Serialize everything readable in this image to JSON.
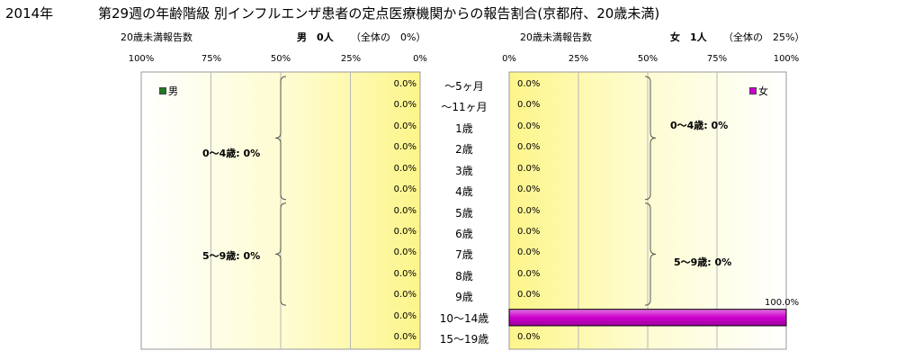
{
  "title": {
    "year": "2014年",
    "main": "第29週の年齢階級 別インフルエンザ患者の定点医療機関からの報告割合(京都府、20歳未満)"
  },
  "male_panel": {
    "header_count_label": "20歳未満報告数",
    "header_summary": "男　0人",
    "header_share": "（全体の　0%）",
    "ticks": [
      "100%",
      "75%",
      "50%",
      "25%",
      "0%"
    ],
    "legend": "男",
    "legend_color": "#1f7a1f",
    "groups": [
      {
        "label": "0～4歳: 0%"
      },
      {
        "label": "5～9歳: 0%"
      }
    ]
  },
  "female_panel": {
    "header_count_label": "20歳未満報告数",
    "header_summary": "女　1人",
    "header_share": "（全体の　25%）",
    "ticks": [
      "0%",
      "25%",
      "50%",
      "75%",
      "100%"
    ],
    "legend": "女",
    "legend_color": "#cc00cc",
    "groups": [
      {
        "label": "0～4歳: 0%"
      },
      {
        "label": "5～9歳: 0%"
      }
    ]
  },
  "chart_data": {
    "type": "bar",
    "orientation": "horizontal",
    "layout": "population-pyramid",
    "categories": [
      "～5ヶ月",
      "～11ヶ月",
      "1歳",
      "2歳",
      "3歳",
      "4歳",
      "5歳",
      "6歳",
      "7歳",
      "8歳",
      "9歳",
      "10～14歳",
      "15～19歳"
    ],
    "series": [
      {
        "name": "男",
        "color": "#1f7a1f",
        "values": [
          0,
          0,
          0,
          0,
          0,
          0,
          0,
          0,
          0,
          0,
          0,
          0,
          0
        ],
        "labels": [
          "0.0%",
          "0.0%",
          "0.0%",
          "0.0%",
          "0.0%",
          "0.0%",
          "0.0%",
          "0.0%",
          "0.0%",
          "0.0%",
          "0.0%",
          "0.0%",
          "0.0%"
        ]
      },
      {
        "name": "女",
        "color": "#cc00cc",
        "values": [
          0,
          0,
          0,
          0,
          0,
          0,
          0,
          0,
          0,
          0,
          0,
          100,
          0
        ],
        "labels": [
          "0.0%",
          "0.0%",
          "0.0%",
          "0.0%",
          "0.0%",
          "0.0%",
          "0.0%",
          "0.0%",
          "0.0%",
          "0.0%",
          "0.0%",
          "100.0%",
          "0.0%"
        ]
      }
    ],
    "xlim": [
      0,
      100
    ],
    "unit": "%",
    "grid": true
  }
}
